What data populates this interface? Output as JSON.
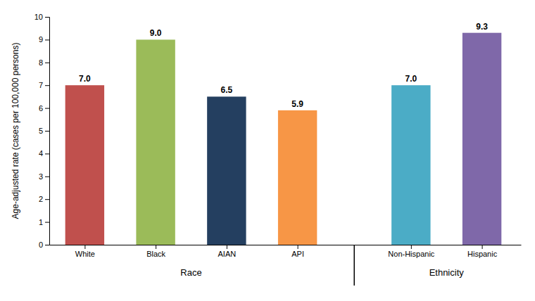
{
  "chart_data": {
    "type": "bar",
    "categories": [
      "White",
      "Black",
      "AIAN",
      "API",
      "Non-Hispanic",
      "Hispanic"
    ],
    "values": [
      7.0,
      9.0,
      6.5,
      5.9,
      7.0,
      9.3
    ],
    "value_labels": [
      "7.0",
      "9.0",
      "6.5",
      "5.9",
      "7.0",
      "9.3"
    ],
    "colors": [
      "#c0504d",
      "#9bbb59",
      "#243f60",
      "#f79646",
      "#4bacc6",
      "#7f68a9"
    ],
    "ylabel": "Age-adjusted rate (cases per 100,000 persons)",
    "ylim": [
      0,
      10
    ],
    "yticks": [
      0,
      1,
      2,
      3,
      4,
      5,
      6,
      7,
      8,
      9,
      10
    ],
    "groups": [
      {
        "label": "Race",
        "categories": [
          "White",
          "Black",
          "AIAN",
          "API"
        ]
      },
      {
        "label": "Ethnicity",
        "categories": [
          "Non-Hispanic",
          "Hispanic"
        ]
      }
    ],
    "data_labels": true,
    "grid": false
  }
}
